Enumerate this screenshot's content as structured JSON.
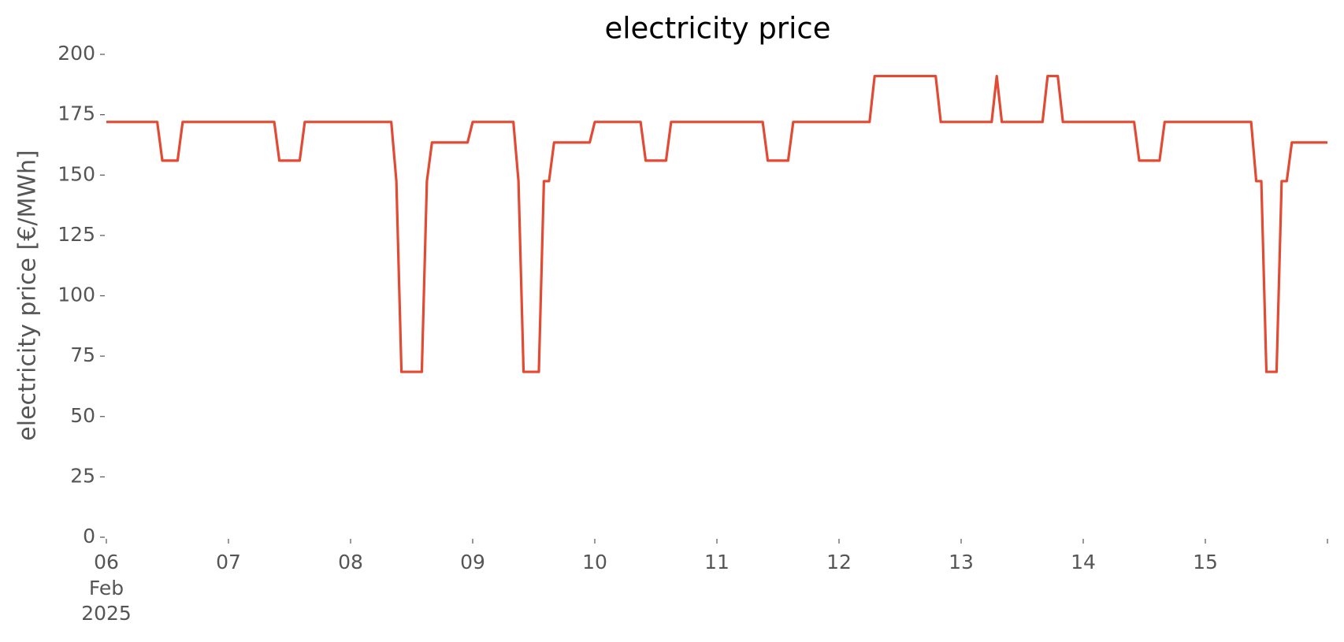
{
  "chart_data": {
    "type": "line",
    "title": "electricity price",
    "y_label": "electricity price [€/MWh]",
    "x_month_label": "Feb",
    "x_year_label": "2025",
    "x": [
      0,
      10,
      11,
      14,
      15,
      33,
      34,
      38,
      39,
      56,
      57,
      58,
      62,
      63,
      64,
      71,
      72,
      80,
      81,
      82,
      85,
      86,
      87,
      88,
      95,
      96,
      105,
      106,
      110,
      111,
      129,
      130,
      134,
      135,
      150,
      151,
      163,
      164,
      174,
      175,
      176,
      184,
      185,
      187,
      188,
      202,
      203,
      207,
      208,
      225,
      226,
      227,
      228,
      230,
      231,
      232,
      233,
      240
    ],
    "series": [
      {
        "name": "electricity price",
        "color": "#e24a33",
        "values": [
          172,
          172,
          156,
          156,
          172,
          172,
          156,
          156,
          172,
          172,
          147.5,
          68.5,
          68.5,
          147.5,
          163.5,
          163.5,
          172,
          172,
          147.5,
          68.5,
          68.5,
          147.5,
          147.5,
          163.5,
          163.5,
          172,
          172,
          156,
          156,
          172,
          172,
          156,
          156,
          172,
          172,
          191,
          191,
          172,
          172,
          191,
          172,
          172,
          191,
          191,
          172,
          172,
          156,
          156,
          172,
          172,
          147.5,
          147.5,
          68.5,
          68.5,
          147.5,
          147.5,
          163.5,
          163.5
        ]
      }
    ],
    "xlim": [
      0,
      240
    ],
    "xticks": [
      {
        "value": 0,
        "label": "06"
      },
      {
        "value": 24,
        "label": "07"
      },
      {
        "value": 48,
        "label": "08"
      },
      {
        "value": 72,
        "label": "09"
      },
      {
        "value": 96,
        "label": "10"
      },
      {
        "value": 120,
        "label": "11"
      },
      {
        "value": 144,
        "label": "12"
      },
      {
        "value": 168,
        "label": "13"
      },
      {
        "value": 192,
        "label": "14"
      },
      {
        "value": 216,
        "label": "15"
      },
      {
        "value": 240,
        "label": null
      }
    ],
    "ylim": [
      0,
      200
    ],
    "yticks": [
      0,
      25,
      50,
      75,
      100,
      125,
      150,
      175,
      200
    ],
    "grid": false
  }
}
